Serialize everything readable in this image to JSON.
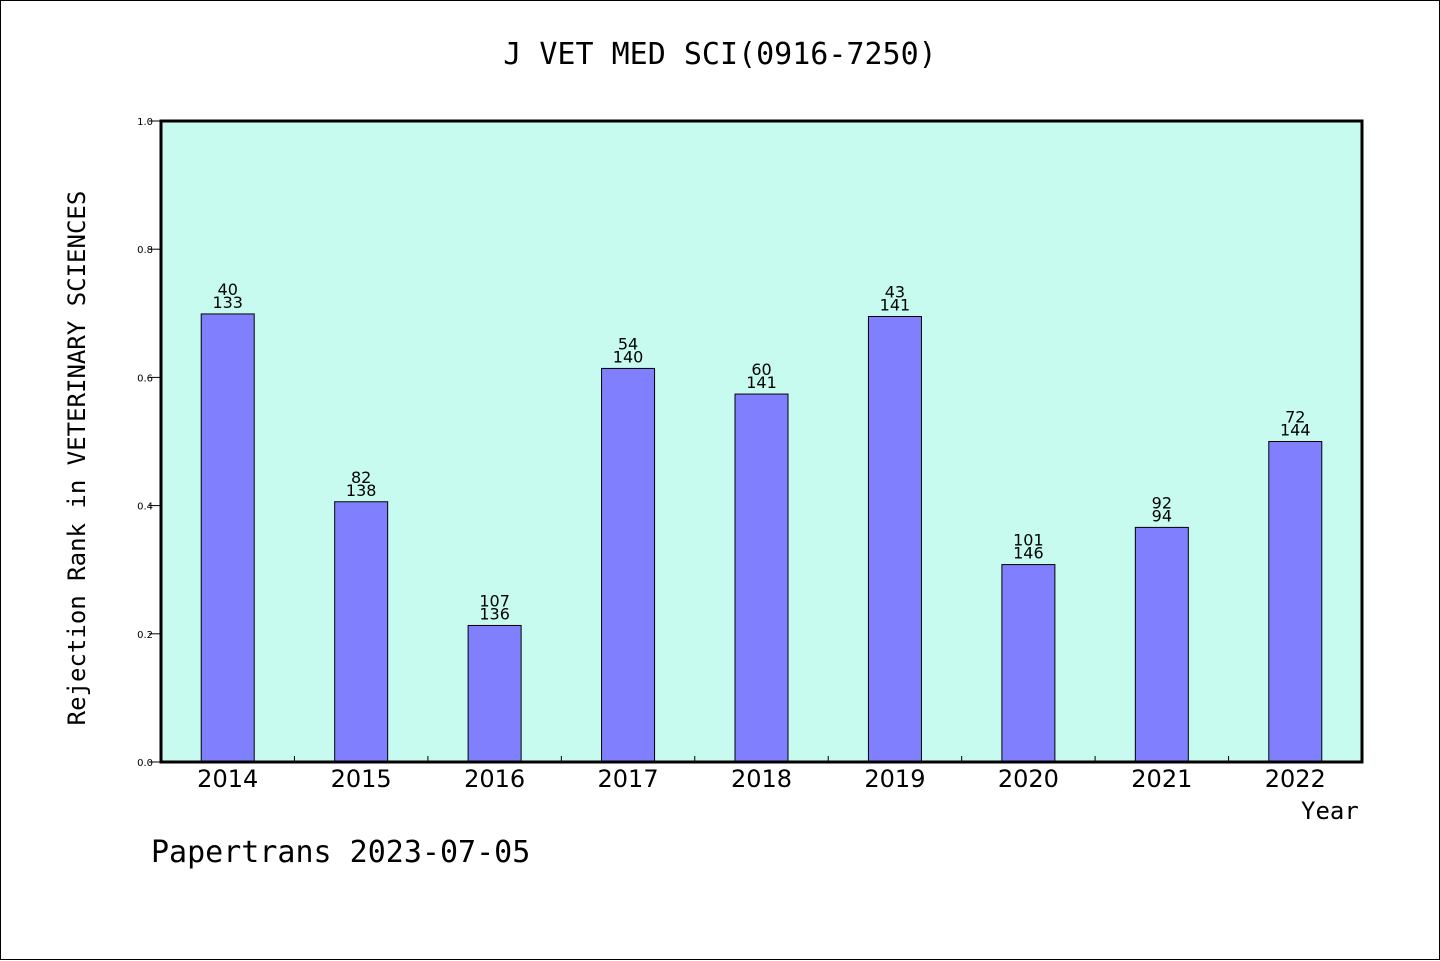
{
  "title": "J VET MED SCI(0916-7250)",
  "footer": "Papertrans 2023-07-05",
  "colors": {
    "plot_background": "#c8fbef",
    "bar_fill": "#8080ff",
    "axis": "#000000"
  },
  "chart_data": {
    "type": "bar",
    "title": "J VET MED SCI(0916-7250)",
    "xlabel": "Year",
    "ylabel": "Rejection Rank in VETERINARY SCIENCES",
    "categories": [
      "2014",
      "2015",
      "2016",
      "2017",
      "2018",
      "2019",
      "2020",
      "2021",
      "2022"
    ],
    "values": [
      0.699,
      0.406,
      0.213,
      0.614,
      0.574,
      0.695,
      0.308,
      0.366,
      0.5
    ],
    "labels_top": [
      "40",
      "82",
      "107",
      "54",
      "60",
      "43",
      "101",
      "92",
      "72"
    ],
    "labels_bottom": [
      "133",
      "138",
      "136",
      "140",
      "141",
      "141",
      "146",
      "94",
      "144"
    ],
    "ylim": [
      0,
      1.0
    ],
    "yticks": [
      "0.0",
      "0.2",
      "0.4",
      "0.6",
      "0.8",
      "1.0"
    ],
    "grid": false
  }
}
